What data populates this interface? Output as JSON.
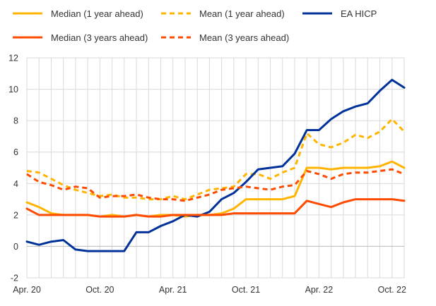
{
  "chart_data": {
    "type": "line",
    "title": "",
    "xlabel": "",
    "ylabel": "",
    "ylim": [
      -2,
      12
    ],
    "yticks": [
      -2,
      0,
      2,
      4,
      6,
      8,
      10,
      12
    ],
    "grid": true,
    "legend_position": "top",
    "x": [
      "Apr. 20",
      "May 20",
      "Jun. 20",
      "Jul. 20",
      "Aug. 20",
      "Sep. 20",
      "Oct. 20",
      "Nov. 20",
      "Dec. 20",
      "Jan. 21",
      "Feb. 21",
      "Mar. 21",
      "Apr. 21",
      "May 21",
      "Jun. 21",
      "Jul. 21",
      "Aug. 21",
      "Sep. 21",
      "Oct. 21",
      "Nov. 21",
      "Dec. 21",
      "Jan. 22",
      "Feb. 22",
      "Mar. 22",
      "Apr. 22",
      "May 22",
      "Jun. 22",
      "Jul. 22",
      "Aug. 22",
      "Sep. 22",
      "Oct. 22",
      "Nov. 22"
    ],
    "xtick_labels": [
      {
        "index": 0,
        "label": "Apr. 20"
      },
      {
        "index": 6,
        "label": "Oct. 20"
      },
      {
        "index": 12,
        "label": "Apr. 21"
      },
      {
        "index": 18,
        "label": "Oct. 21"
      },
      {
        "index": 24,
        "label": "Apr. 22"
      },
      {
        "index": 30,
        "label": "Oct. 22"
      }
    ],
    "series": [
      {
        "name": "Median (1 year ahead)",
        "color": "#FFB400",
        "dash": "solid",
        "values": [
          2.8,
          2.5,
          2.1,
          2.0,
          2.0,
          2.0,
          1.9,
          2.0,
          1.9,
          2.0,
          1.9,
          2.0,
          2.0,
          1.9,
          2.0,
          2.0,
          2.1,
          2.4,
          3.0,
          3.0,
          3.0,
          3.0,
          3.2,
          5.0,
          5.0,
          4.9,
          5.0,
          5.0,
          5.0,
          5.1,
          5.4,
          5.0
        ]
      },
      {
        "name": "Mean (1 year ahead)",
        "color": "#FFB400",
        "dash": "dashed",
        "values": [
          4.8,
          4.7,
          4.3,
          3.9,
          3.6,
          3.4,
          3.2,
          3.3,
          3.1,
          3.1,
          3.0,
          3.0,
          3.2,
          3.0,
          3.3,
          3.6,
          3.7,
          3.8,
          4.6,
          4.6,
          4.3,
          4.7,
          5.0,
          7.2,
          6.5,
          6.3,
          6.6,
          7.1,
          6.9,
          7.3,
          8.1,
          7.3
        ]
      },
      {
        "name": "EA HICP",
        "color": "#003299",
        "dash": "solid",
        "values": [
          0.3,
          0.1,
          0.3,
          0.4,
          -0.2,
          -0.3,
          -0.3,
          -0.3,
          -0.3,
          0.9,
          0.9,
          1.3,
          1.6,
          2.0,
          1.9,
          2.2,
          3.0,
          3.4,
          4.1,
          4.9,
          5.0,
          5.1,
          5.9,
          7.4,
          7.4,
          8.1,
          8.6,
          8.9,
          9.1,
          9.9,
          10.6,
          10.1
        ]
      },
      {
        "name": "Median (3 years ahead)",
        "color": "#FF4B00",
        "dash": "solid",
        "values": [
          2.4,
          2.0,
          2.0,
          2.0,
          2.0,
          2.0,
          1.9,
          1.9,
          1.9,
          2.0,
          1.9,
          1.9,
          2.0,
          2.0,
          2.0,
          2.0,
          2.0,
          2.1,
          2.1,
          2.1,
          2.1,
          2.1,
          2.1,
          2.9,
          2.7,
          2.5,
          2.8,
          3.0,
          3.0,
          3.0,
          3.0,
          2.9
        ]
      },
      {
        "name": "Mean (3 years ahead)",
        "color": "#FF4B00",
        "dash": "dashed",
        "values": [
          4.6,
          4.1,
          3.9,
          3.6,
          3.8,
          3.7,
          3.1,
          3.2,
          3.2,
          3.3,
          3.1,
          3.0,
          3.0,
          2.9,
          3.1,
          3.3,
          3.6,
          3.7,
          3.8,
          3.7,
          3.6,
          3.8,
          3.9,
          4.8,
          4.6,
          4.3,
          4.6,
          4.7,
          4.7,
          4.8,
          4.9,
          4.6
        ]
      }
    ]
  }
}
